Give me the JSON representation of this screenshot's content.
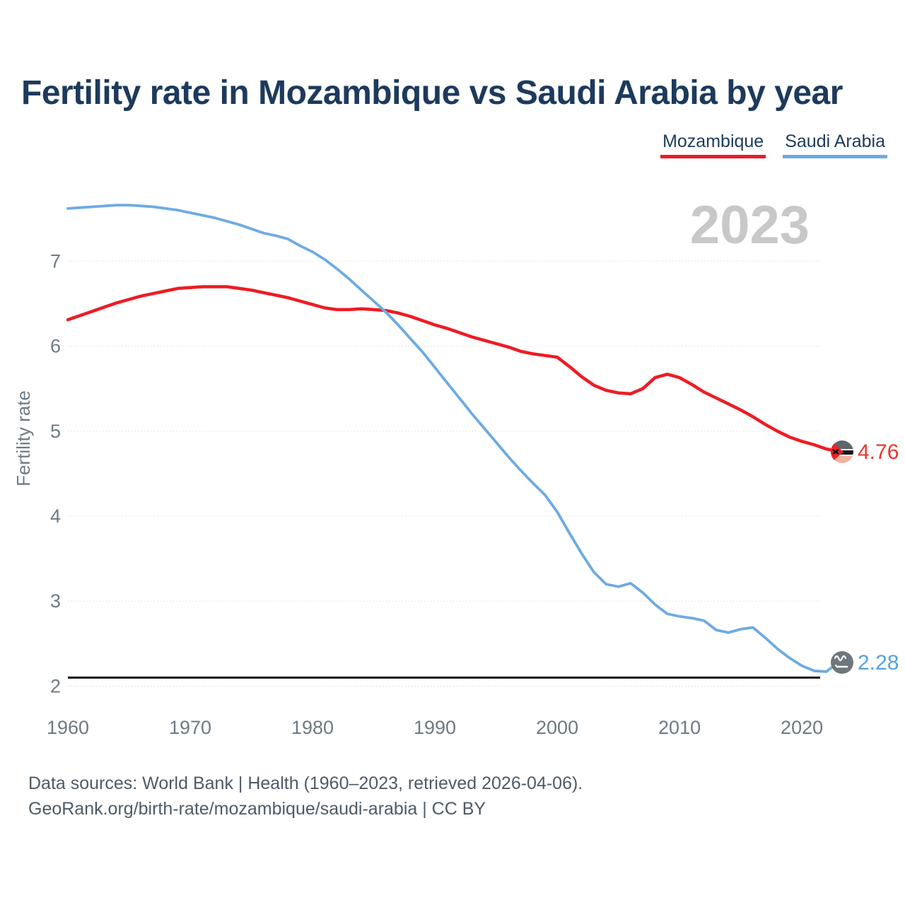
{
  "title": "Fertility rate in Mozambique vs Saudi Arabia by year",
  "legend": {
    "mozambique": {
      "label": "Mozambique",
      "color": "#ed1c24"
    },
    "saudi_arabia": {
      "label": "Saudi Arabia",
      "color": "#6dabe2"
    }
  },
  "year_annotation": "2023",
  "y_axis": {
    "label": "Fertility rate",
    "ticks": [
      7,
      6,
      5,
      4,
      3,
      2
    ]
  },
  "x_axis": {
    "ticks": [
      1960,
      1970,
      1980,
      1990,
      2000,
      2010,
      2020
    ]
  },
  "end_labels": {
    "mozambique": {
      "value": "4.76",
      "color": "#e8352e",
      "flag": "mozambique-flag"
    },
    "saudi_arabia": {
      "value": "2.28",
      "color": "#55a3e3",
      "flag": "saudi-arabia-flag"
    }
  },
  "footer": {
    "line1": "Data sources: World Bank | Health (1960–2023, retrieved 2026-04-06).",
    "line2": "GeoRank.org/birth-rate/mozambique/saudi-arabia | CC BY"
  },
  "chart_data": {
    "type": "line",
    "title": "Fertility rate in Mozambique vs Saudi Arabia by year",
    "ylabel": "Fertility rate",
    "xlabel": "",
    "xlim": [
      1960,
      2023
    ],
    "ylim": [
      2,
      7.85
    ],
    "yticks": [
      2,
      3,
      4,
      5,
      6,
      7
    ],
    "xticks": [
      1960,
      1970,
      1980,
      1990,
      2000,
      2010,
      2020
    ],
    "grid": true,
    "legend_position": "top-right",
    "reference_line": {
      "value": 2.1,
      "color": "#121212",
      "meaning": "replacement-level fertility"
    },
    "annotation": {
      "text": "2023",
      "position": "upper-right"
    },
    "x": [
      1960,
      1961,
      1962,
      1963,
      1964,
      1965,
      1966,
      1967,
      1968,
      1969,
      1970,
      1971,
      1972,
      1973,
      1974,
      1975,
      1976,
      1977,
      1978,
      1979,
      1980,
      1981,
      1982,
      1983,
      1984,
      1985,
      1986,
      1987,
      1988,
      1989,
      1990,
      1991,
      1992,
      1993,
      1994,
      1995,
      1996,
      1997,
      1998,
      1999,
      2000,
      2001,
      2002,
      2003,
      2004,
      2005,
      2006,
      2007,
      2008,
      2009,
      2010,
      2011,
      2012,
      2013,
      2014,
      2015,
      2016,
      2017,
      2018,
      2019,
      2020,
      2021,
      2022,
      2023
    ],
    "series": [
      {
        "name": "Mozambique",
        "color": "#ed1c24",
        "end_value": 4.76,
        "values": [
          6.31,
          6.36,
          6.41,
          6.46,
          6.51,
          6.55,
          6.59,
          6.62,
          6.65,
          6.68,
          6.69,
          6.7,
          6.7,
          6.7,
          6.68,
          6.66,
          6.63,
          6.6,
          6.57,
          6.53,
          6.49,
          6.45,
          6.43,
          6.43,
          6.44,
          6.43,
          6.42,
          6.39,
          6.35,
          6.3,
          6.25,
          6.21,
          6.16,
          6.11,
          6.07,
          6.03,
          5.99,
          5.94,
          5.91,
          5.89,
          5.87,
          5.76,
          5.64,
          5.54,
          5.48,
          5.45,
          5.44,
          5.5,
          5.63,
          5.67,
          5.63,
          5.55,
          5.46,
          5.39,
          5.32,
          5.25,
          5.17,
          5.08,
          5.0,
          4.93,
          4.88,
          4.84,
          4.79,
          4.76
        ]
      },
      {
        "name": "Saudi Arabia",
        "color": "#6dabe2",
        "end_value": 2.28,
        "values": [
          7.62,
          7.63,
          7.64,
          7.65,
          7.66,
          7.66,
          7.65,
          7.64,
          7.62,
          7.6,
          7.57,
          7.54,
          7.51,
          7.47,
          7.43,
          7.38,
          7.33,
          7.3,
          7.26,
          7.18,
          7.11,
          7.02,
          6.91,
          6.79,
          6.66,
          6.53,
          6.4,
          6.25,
          6.09,
          5.93,
          5.75,
          5.57,
          5.39,
          5.21,
          5.04,
          4.87,
          4.7,
          4.54,
          4.39,
          4.25,
          4.05,
          3.8,
          3.56,
          3.34,
          3.2,
          3.17,
          3.21,
          3.1,
          2.96,
          2.85,
          2.82,
          2.8,
          2.77,
          2.66,
          2.63,
          2.67,
          2.69,
          2.57,
          2.44,
          2.33,
          2.24,
          2.18,
          2.17,
          2.28
        ]
      }
    ]
  }
}
